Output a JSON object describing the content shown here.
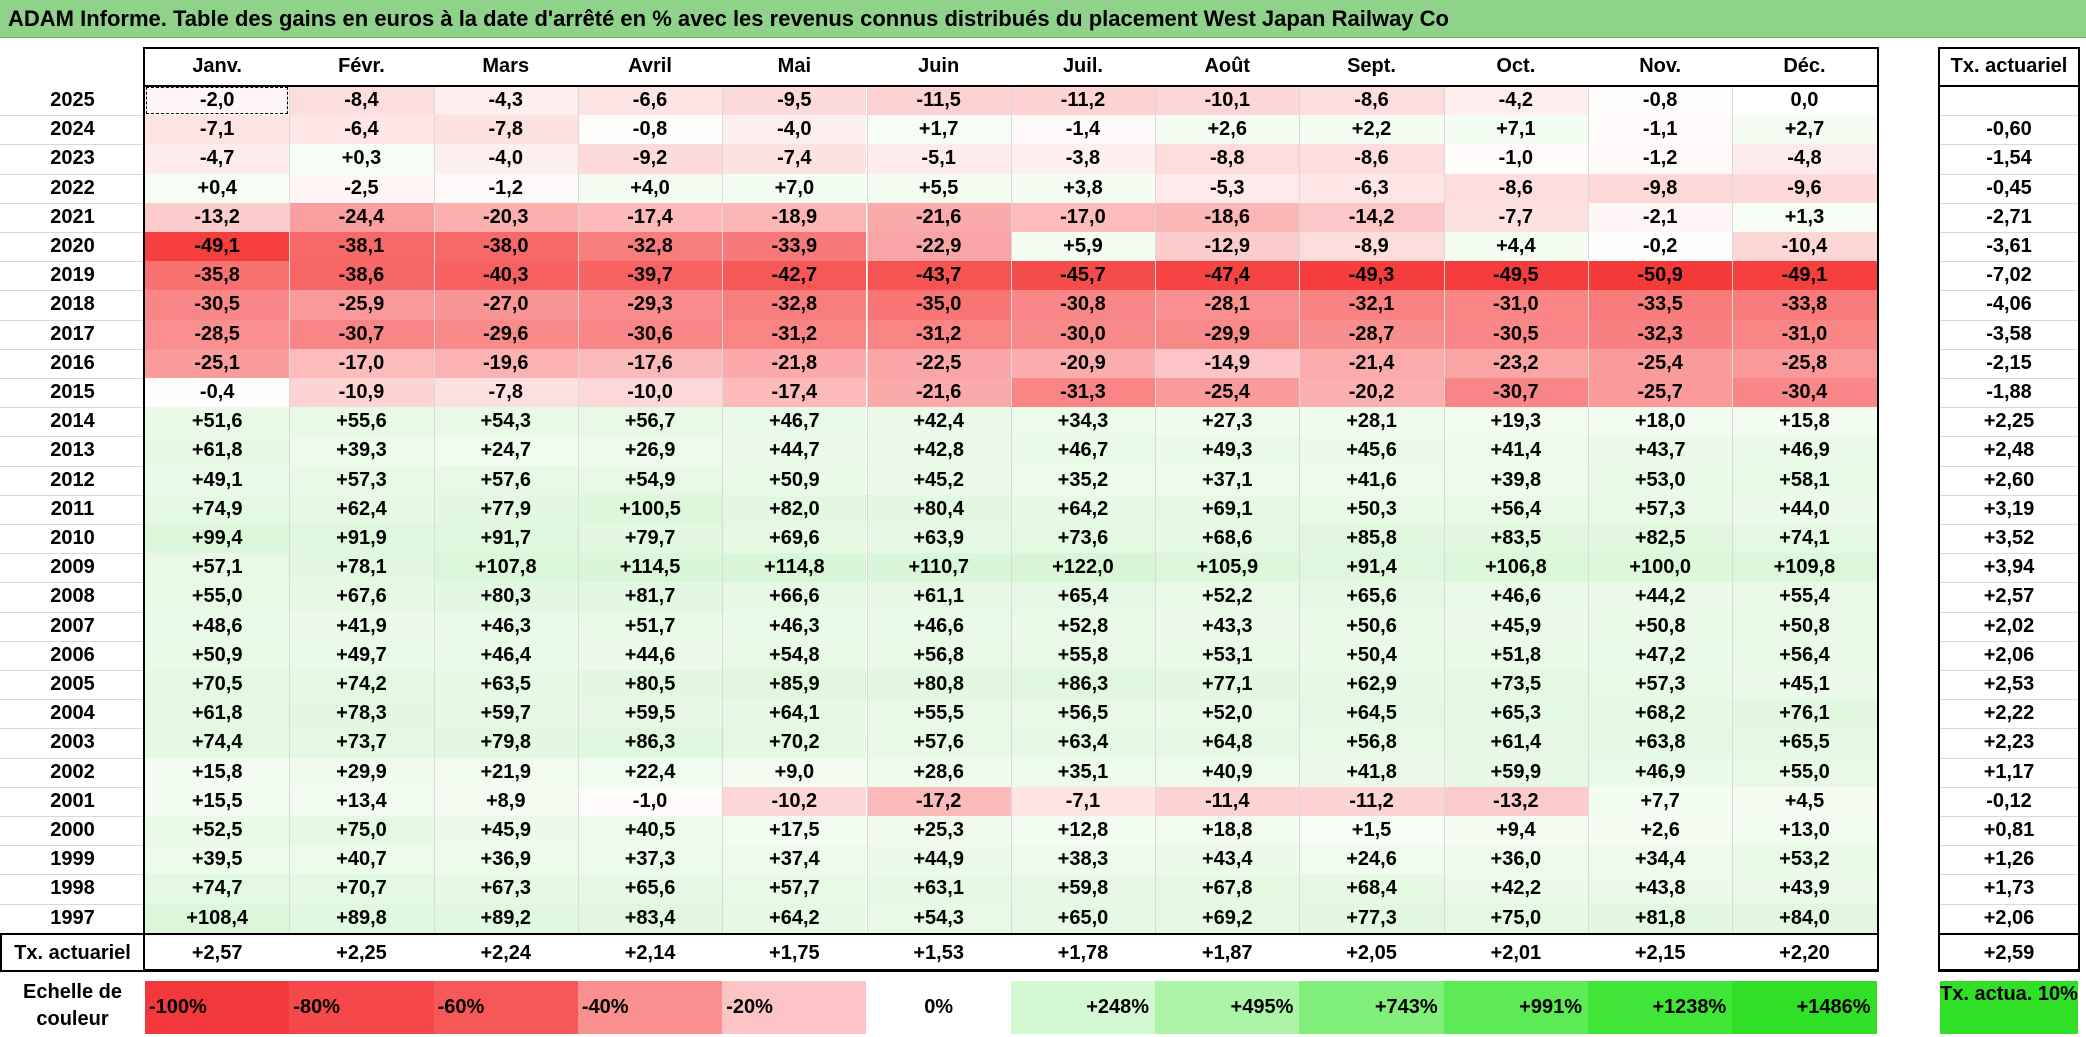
{
  "title": "ADAM Informe. Table des gains en euros à la date d'arrêté en % avec les revenus connus distribués du placement West Japan Railway Co",
  "months": [
    "Janv.",
    "Févr.",
    "Mars",
    "Avril",
    "Mai",
    "Juin",
    "Juil.",
    "Août",
    "Sept.",
    "Oct.",
    "Nov.",
    "Déc."
  ],
  "rate_header": "Tx. actuariel",
  "rows": [
    {
      "year": "2025",
      "values": [
        "-2,0",
        "-8,4",
        "-4,3",
        "-6,6",
        "-9,5",
        "-11,5",
        "-11,2",
        "-10,1",
        "-8,6",
        "-4,2",
        "-0,8",
        "0,0"
      ],
      "rate": ""
    },
    {
      "year": "2024",
      "values": [
        "-7,1",
        "-6,4",
        "-7,8",
        "-0,8",
        "-4,0",
        "+1,7",
        "-1,4",
        "+2,6",
        "+2,2",
        "+7,1",
        "-1,1",
        "+2,7"
      ],
      "rate": "-0,60"
    },
    {
      "year": "2023",
      "values": [
        "-4,7",
        "+0,3",
        "-4,0",
        "-9,2",
        "-7,4",
        "-5,1",
        "-3,8",
        "-8,8",
        "-8,6",
        "-1,0",
        "-1,2",
        "-4,8"
      ],
      "rate": "-1,54"
    },
    {
      "year": "2022",
      "values": [
        "+0,4",
        "-2,5",
        "-1,2",
        "+4,0",
        "+7,0",
        "+5,5",
        "+3,8",
        "-5,3",
        "-6,3",
        "-8,6",
        "-9,8",
        "-9,6"
      ],
      "rate": "-0,45"
    },
    {
      "year": "2021",
      "values": [
        "-13,2",
        "-24,4",
        "-20,3",
        "-17,4",
        "-18,9",
        "-21,6",
        "-17,0",
        "-18,6",
        "-14,2",
        "-7,7",
        "-2,1",
        "+1,3"
      ],
      "rate": "-2,71"
    },
    {
      "year": "2020",
      "values": [
        "-49,1",
        "-38,1",
        "-38,0",
        "-32,8",
        "-33,9",
        "-22,9",
        "+5,9",
        "-12,9",
        "-8,9",
        "+4,4",
        "-0,2",
        "-10,4"
      ],
      "rate": "-3,61"
    },
    {
      "year": "2019",
      "values": [
        "-35,8",
        "-38,6",
        "-40,3",
        "-39,7",
        "-42,7",
        "-43,7",
        "-45,7",
        "-47,4",
        "-49,3",
        "-49,5",
        "-50,9",
        "-49,1"
      ],
      "rate": "-7,02"
    },
    {
      "year": "2018",
      "values": [
        "-30,5",
        "-25,9",
        "-27,0",
        "-29,3",
        "-32,8",
        "-35,0",
        "-30,8",
        "-28,1",
        "-32,1",
        "-31,0",
        "-33,5",
        "-33,8"
      ],
      "rate": "-4,06"
    },
    {
      "year": "2017",
      "values": [
        "-28,5",
        "-30,7",
        "-29,6",
        "-30,6",
        "-31,2",
        "-31,2",
        "-30,0",
        "-29,9",
        "-28,7",
        "-30,5",
        "-32,3",
        "-31,0"
      ],
      "rate": "-3,58"
    },
    {
      "year": "2016",
      "values": [
        "-25,1",
        "-17,0",
        "-19,6",
        "-17,6",
        "-21,8",
        "-22,5",
        "-20,9",
        "-14,9",
        "-21,4",
        "-23,2",
        "-25,4",
        "-25,8"
      ],
      "rate": "-2,15"
    },
    {
      "year": "2015",
      "values": [
        "-0,4",
        "-10,9",
        "-7,8",
        "-10,0",
        "-17,4",
        "-21,6",
        "-31,3",
        "-25,4",
        "-20,2",
        "-30,7",
        "-25,7",
        "-30,4"
      ],
      "rate": "-1,88"
    },
    {
      "year": "2014",
      "values": [
        "+51,6",
        "+55,6",
        "+54,3",
        "+56,7",
        "+46,7",
        "+42,4",
        "+34,3",
        "+27,3",
        "+28,1",
        "+19,3",
        "+18,0",
        "+15,8"
      ],
      "rate": "+2,25"
    },
    {
      "year": "2013",
      "values": [
        "+61,8",
        "+39,3",
        "+24,7",
        "+26,9",
        "+44,7",
        "+42,8",
        "+46,7",
        "+49,3",
        "+45,6",
        "+41,4",
        "+43,7",
        "+46,9"
      ],
      "rate": "+2,48"
    },
    {
      "year": "2012",
      "values": [
        "+49,1",
        "+57,3",
        "+57,6",
        "+54,9",
        "+50,9",
        "+45,2",
        "+35,2",
        "+37,1",
        "+41,6",
        "+39,8",
        "+53,0",
        "+58,1"
      ],
      "rate": "+2,60"
    },
    {
      "year": "2011",
      "values": [
        "+74,9",
        "+62,4",
        "+77,9",
        "+100,5",
        "+82,0",
        "+80,4",
        "+64,2",
        "+69,1",
        "+50,3",
        "+56,4",
        "+57,3",
        "+44,0"
      ],
      "rate": "+3,19"
    },
    {
      "year": "2010",
      "values": [
        "+99,4",
        "+91,9",
        "+91,7",
        "+79,7",
        "+69,6",
        "+63,9",
        "+73,6",
        "+68,6",
        "+85,8",
        "+83,5",
        "+82,5",
        "+74,1"
      ],
      "rate": "+3,52"
    },
    {
      "year": "2009",
      "values": [
        "+57,1",
        "+78,1",
        "+107,8",
        "+114,5",
        "+114,8",
        "+110,7",
        "+122,0",
        "+105,9",
        "+91,4",
        "+106,8",
        "+100,0",
        "+109,8"
      ],
      "rate": "+3,94"
    },
    {
      "year": "2008",
      "values": [
        "+55,0",
        "+67,6",
        "+80,3",
        "+81,7",
        "+66,6",
        "+61,1",
        "+65,4",
        "+52,2",
        "+65,6",
        "+46,6",
        "+44,2",
        "+55,4"
      ],
      "rate": "+2,57"
    },
    {
      "year": "2007",
      "values": [
        "+48,6",
        "+41,9",
        "+46,3",
        "+51,7",
        "+46,3",
        "+46,6",
        "+52,8",
        "+43,3",
        "+50,6",
        "+45,9",
        "+50,8",
        "+50,8"
      ],
      "rate": "+2,02"
    },
    {
      "year": "2006",
      "values": [
        "+50,9",
        "+49,7",
        "+46,4",
        "+44,6",
        "+54,8",
        "+56,8",
        "+55,8",
        "+53,1",
        "+50,4",
        "+51,8",
        "+47,2",
        "+56,4"
      ],
      "rate": "+2,06"
    },
    {
      "year": "2005",
      "values": [
        "+70,5",
        "+74,2",
        "+63,5",
        "+80,5",
        "+85,9",
        "+80,8",
        "+86,3",
        "+77,1",
        "+62,9",
        "+73,5",
        "+57,3",
        "+45,1"
      ],
      "rate": "+2,53"
    },
    {
      "year": "2004",
      "values": [
        "+61,8",
        "+78,3",
        "+59,7",
        "+59,5",
        "+64,1",
        "+55,5",
        "+56,5",
        "+52,0",
        "+64,5",
        "+65,3",
        "+68,2",
        "+76,1"
      ],
      "rate": "+2,22"
    },
    {
      "year": "2003",
      "values": [
        "+74,4",
        "+73,7",
        "+79,8",
        "+86,3",
        "+70,2",
        "+57,6",
        "+63,4",
        "+64,8",
        "+56,8",
        "+61,4",
        "+63,8",
        "+65,5"
      ],
      "rate": "+2,23"
    },
    {
      "year": "2002",
      "values": [
        "+15,8",
        "+29,9",
        "+21,9",
        "+22,4",
        "+9,0",
        "+28,6",
        "+35,1",
        "+40,9",
        "+41,8",
        "+59,9",
        "+46,9",
        "+55,0"
      ],
      "rate": "+1,17"
    },
    {
      "year": "2001",
      "values": [
        "+15,5",
        "+13,4",
        "+8,9",
        "-1,0",
        "-10,2",
        "-17,2",
        "-7,1",
        "-11,4",
        "-11,2",
        "-13,2",
        "+7,7",
        "+4,5"
      ],
      "rate": "-0,12"
    },
    {
      "year": "2000",
      "values": [
        "+52,5",
        "+75,0",
        "+45,9",
        "+40,5",
        "+17,5",
        "+25,3",
        "+12,8",
        "+18,8",
        "+1,5",
        "+9,4",
        "+2,6",
        "+13,0"
      ],
      "rate": "+0,81"
    },
    {
      "year": "1999",
      "values": [
        "+39,5",
        "+40,7",
        "+36,9",
        "+37,3",
        "+37,4",
        "+44,9",
        "+38,3",
        "+43,4",
        "+24,6",
        "+36,0",
        "+34,4",
        "+53,2"
      ],
      "rate": "+1,26"
    },
    {
      "year": "1998",
      "values": [
        "+74,7",
        "+70,7",
        "+67,3",
        "+65,6",
        "+57,7",
        "+63,1",
        "+59,8",
        "+67,8",
        "+68,4",
        "+42,2",
        "+43,8",
        "+43,9"
      ],
      "rate": "+1,73"
    },
    {
      "year": "1997",
      "values": [
        "+108,4",
        "+89,8",
        "+89,2",
        "+83,4",
        "+64,2",
        "+54,3",
        "+65,0",
        "+69,2",
        "+77,3",
        "+75,0",
        "+81,8",
        "+84,0"
      ],
      "rate": "+2,06"
    }
  ],
  "footer": {
    "label": "Tx. actuariel",
    "values": [
      "+2,57",
      "+2,25",
      "+2,24",
      "+2,14",
      "+1,75",
      "+1,53",
      "+1,78",
      "+1,87",
      "+2,05",
      "+2,01",
      "+2,15",
      "+2,20"
    ],
    "rate": "+2,59"
  },
  "scale": {
    "label": "Echelle de couleur",
    "items": [
      {
        "text": "-100%",
        "color": "#f2383a",
        "align": "left"
      },
      {
        "text": "-80%",
        "color": "#f4484a",
        "align": "left"
      },
      {
        "text": "-60%",
        "color": "#f65858",
        "align": "left"
      },
      {
        "text": "-40%",
        "color": "#f98f8f",
        "align": "left"
      },
      {
        "text": "-20%",
        "color": "#fcc4c4",
        "align": "left"
      },
      {
        "text": "0%",
        "color": "#ffffff",
        "align": "center"
      },
      {
        "text": "+248%",
        "color": "#d3f8d2",
        "align": "right"
      },
      {
        "text": "+495%",
        "color": "#acf5a8",
        "align": "right"
      },
      {
        "text": "+743%",
        "color": "#80f07a",
        "align": "right"
      },
      {
        "text": "+991%",
        "color": "#5ceb55",
        "align": "right"
      },
      {
        "text": "+1238%",
        "color": "#3fe637",
        "align": "right"
      },
      {
        "text": "+1486%",
        "color": "#2fe026",
        "align": "right"
      }
    ],
    "rate_cell": {
      "text": "Tx. actua. 10%",
      "color": "#2fe026"
    }
  }
}
